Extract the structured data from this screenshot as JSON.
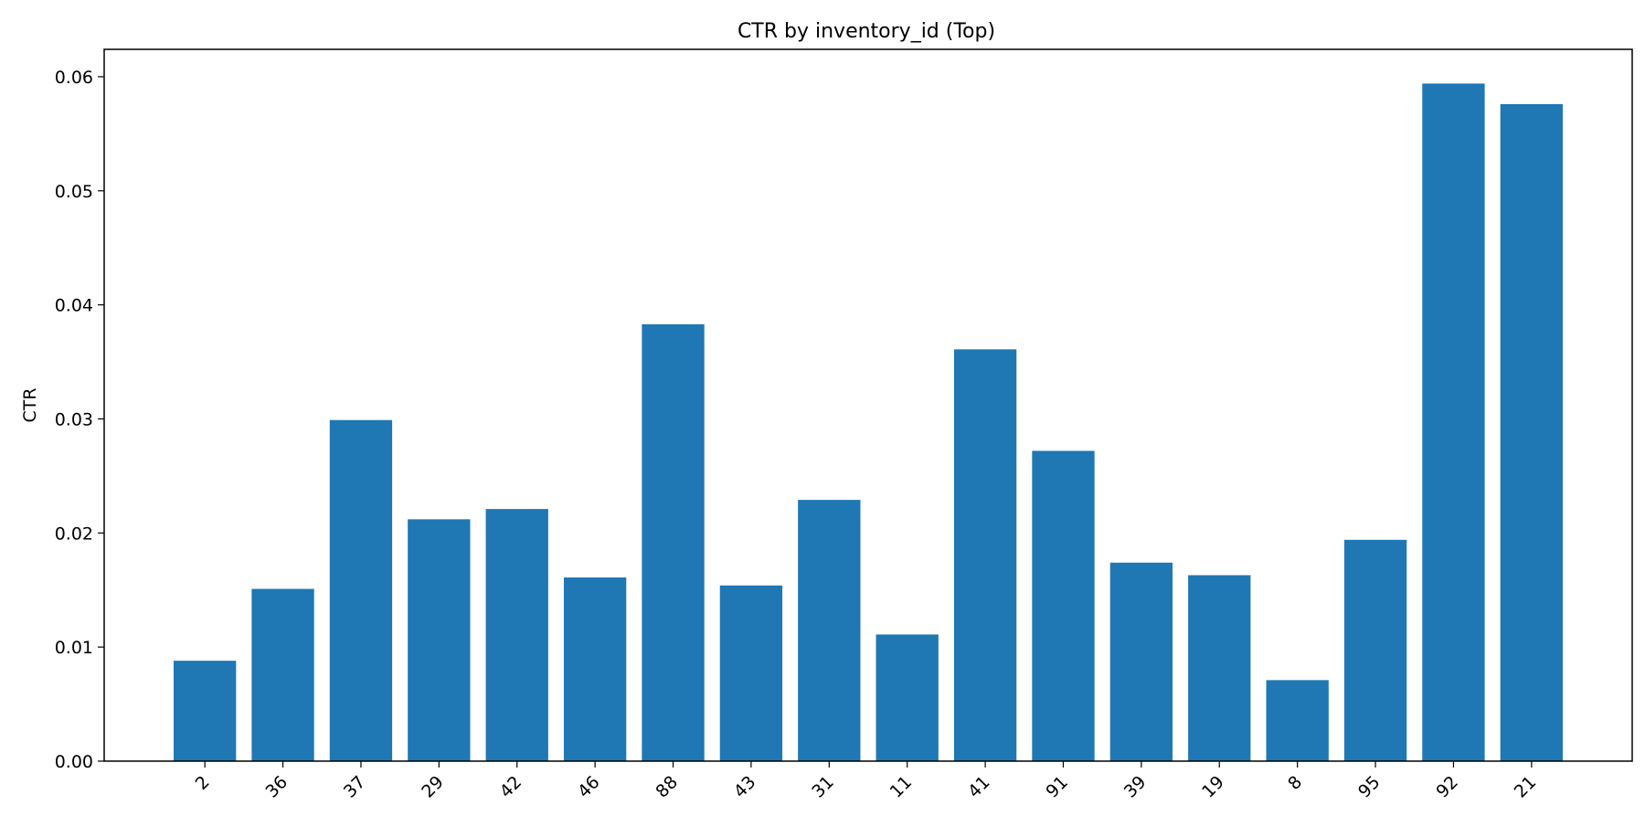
{
  "chart_data": {
    "type": "bar",
    "title": "CTR by inventory_id (Top)",
    "xlabel": "",
    "ylabel": "CTR",
    "categories": [
      "2",
      "36",
      "37",
      "29",
      "42",
      "46",
      "88",
      "43",
      "31",
      "11",
      "41",
      "91",
      "39",
      "19",
      "8",
      "95",
      "92",
      "21"
    ],
    "values": [
      0.0088,
      0.0151,
      0.0299,
      0.0212,
      0.0221,
      0.0161,
      0.0383,
      0.0154,
      0.0229,
      0.0111,
      0.0361,
      0.0272,
      0.0174,
      0.0163,
      0.0071,
      0.0194,
      0.0594,
      0.0576
    ],
    "ylim": [
      0,
      0.0624
    ],
    "yticks": [
      0.0,
      0.01,
      0.02,
      0.03,
      0.04,
      0.05,
      0.06
    ],
    "ytick_labels": [
      "0.00",
      "0.01",
      "0.02",
      "0.03",
      "0.04",
      "0.05",
      "0.06"
    ],
    "grid": false,
    "colors": {
      "bar": "#1f77b4",
      "axis": "#000000"
    }
  }
}
